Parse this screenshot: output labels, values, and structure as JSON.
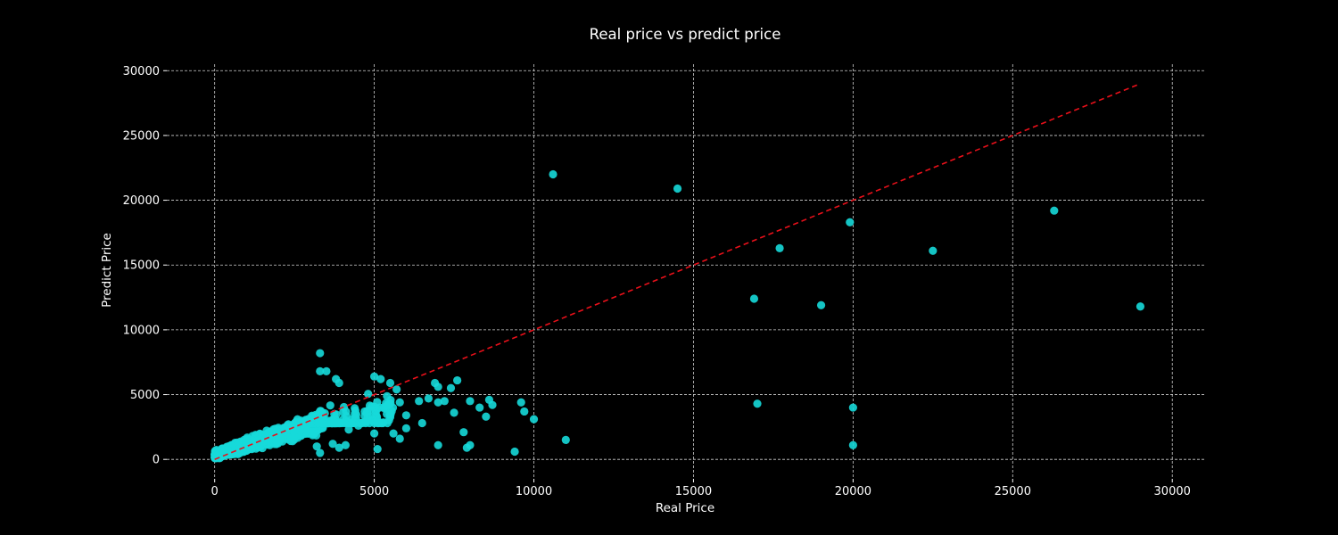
{
  "chart_data": {
    "type": "scatter",
    "title": "Real price vs predict price",
    "xlabel": "Real Price",
    "ylabel": "Predict Price",
    "xlim": [
      -1500,
      31000
    ],
    "ylim": [
      -1500,
      30500
    ],
    "xticks": [
      0,
      5000,
      10000,
      15000,
      20000,
      25000,
      30000
    ],
    "yticks": [
      0,
      5000,
      10000,
      15000,
      20000,
      25000,
      30000
    ],
    "grid": true,
    "reference_line": {
      "style": "dashed",
      "color": "#e8101a",
      "x": [
        0,
        28900
      ],
      "y": [
        0,
        28900
      ]
    },
    "point_color": "#16d9d9",
    "background": "#000000",
    "outliers": [
      [
        10600,
        22000
      ],
      [
        14500,
        20900
      ],
      [
        19900,
        18300
      ],
      [
        26300,
        19200
      ],
      [
        17700,
        16300
      ],
      [
        22500,
        16100
      ],
      [
        16900,
        12400
      ],
      [
        19000,
        11900
      ],
      [
        29000,
        11800
      ],
      [
        17000,
        4300
      ],
      [
        20000,
        4000
      ],
      [
        20000,
        1100
      ],
      [
        11000,
        1500
      ],
      [
        10000,
        3100
      ],
      [
        9700,
        3700
      ],
      [
        9600,
        4400
      ],
      [
        9400,
        600
      ],
      [
        8700,
        4200
      ],
      [
        8600,
        4600
      ],
      [
        8500,
        3300
      ],
      [
        8300,
        4000
      ],
      [
        8000,
        4500
      ],
      [
        7900,
        900
      ],
      [
        8000,
        1100
      ],
      [
        7800,
        2100
      ],
      [
        7600,
        6100
      ],
      [
        7500,
        3600
      ],
      [
        7400,
        5500
      ],
      [
        7000,
        4400
      ],
      [
        7200,
        4500
      ],
      [
        7000,
        5600
      ],
      [
        6900,
        5900
      ],
      [
        6700,
        4700
      ],
      [
        6500,
        2800
      ],
      [
        6400,
        4500
      ],
      [
        7000,
        1100
      ],
      [
        6000,
        2400
      ],
      [
        6000,
        3400
      ],
      [
        5800,
        1600
      ],
      [
        5800,
        4400
      ],
      [
        5700,
        5400
      ],
      [
        5500,
        5900
      ],
      [
        5600,
        2000
      ],
      [
        5500,
        3400
      ],
      [
        5200,
        6200
      ],
      [
        5000,
        6400
      ],
      [
        5100,
        800
      ],
      [
        5000,
        2800
      ],
      [
        5000,
        2000
      ],
      [
        4700,
        3700
      ],
      [
        4500,
        2600
      ],
      [
        4200,
        2300
      ],
      [
        4100,
        1100
      ],
      [
        3900,
        900
      ],
      [
        3700,
        1200
      ],
      [
        3500,
        6800
      ],
      [
        3300,
        8200
      ],
      [
        3300,
        6800
      ],
      [
        3800,
        6200
      ],
      [
        3900,
        5900
      ],
      [
        3300,
        500
      ],
      [
        3200,
        1000
      ]
    ],
    "cluster": [
      {
        "x": [
          0,
          3400
        ],
        "y": [
          100,
          4300
        ],
        "n": 1100,
        "slope": 0.78,
        "spread": 380
      },
      {
        "x": [
          3000,
          5600
        ],
        "y": [
          2800,
          5600
        ],
        "n": 160,
        "slope": 0.62,
        "spread": 700
      }
    ]
  }
}
